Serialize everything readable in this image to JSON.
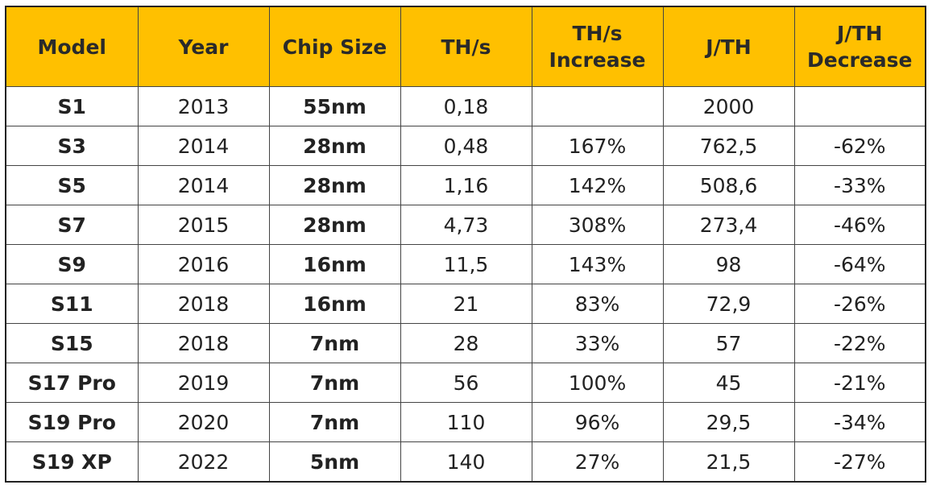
{
  "table": {
    "header": [
      "Model",
      "Year",
      "Chip Size",
      "TH/s",
      "TH/s Increase",
      "J/TH",
      "J/TH Decrease"
    ],
    "rows": [
      [
        "S1",
        "2013",
        "55nm",
        "0,18",
        null,
        "2000",
        null
      ],
      [
        "S3",
        "2014",
        "28nm",
        "0,48",
        "167%",
        "762,5",
        "-62%"
      ],
      [
        "S5",
        "2014",
        "28nm",
        "1,16",
        "142%",
        "508,6",
        "-33%"
      ],
      [
        "S7",
        "2015",
        "28nm",
        "4,73",
        "308%",
        "273,4",
        "-46%"
      ],
      [
        "S9",
        "2016",
        "16nm",
        "11,5",
        "143%",
        "98",
        "-64%"
      ],
      [
        "S11",
        "2018",
        "16nm",
        "21",
        "83%",
        "72,9",
        "-26%"
      ],
      [
        "S15",
        "2018",
        "7nm",
        "28",
        "33%",
        "57",
        "-22%"
      ],
      [
        "S17 Pro",
        "2019",
        "7nm",
        "56",
        "100%",
        "45",
        "-21%"
      ],
      [
        "S19 Pro",
        "2020",
        "7nm",
        "110",
        "96%",
        "29,5",
        "-34%"
      ],
      [
        "S19 XP",
        "2022",
        "5nm",
        "140",
        "27%",
        "21,5",
        "-27%"
      ]
    ]
  }
}
